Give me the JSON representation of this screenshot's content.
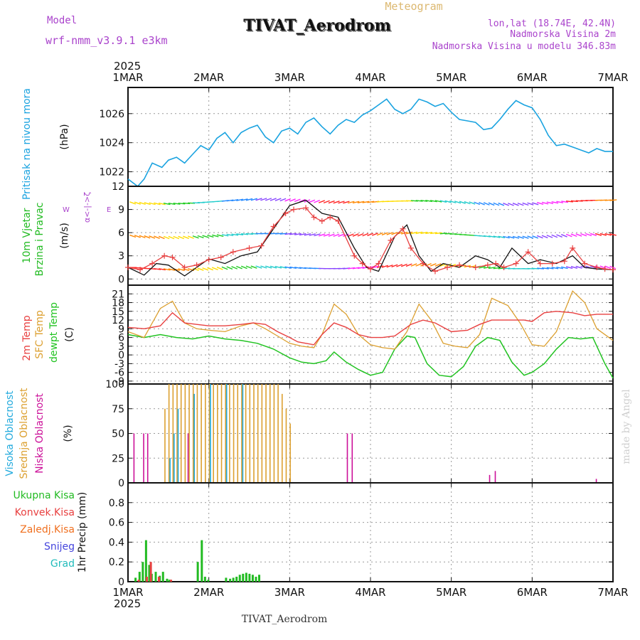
{
  "header": {
    "model_label": "Model",
    "model_name": "wrf-nmm_v3.9.1  e3km",
    "product": "Meteogram",
    "station": "TIVAT_Aerodrom",
    "lonlat": "lon,lat (18.74E, 42.4N)",
    "elevation": "Nadmorska Visina 2m",
    "model_elevation": "Nadmorska Visina u modelu 346.83m",
    "footer_station": "TIVAT_Aerodrom",
    "credit": "made by Angel",
    "year": "2025"
  },
  "colors": {
    "pressure": "#1aa3e0",
    "wind": "#22bb22",
    "temp2m": "#e84040",
    "sfc": "#dca030",
    "dew": "#22c322",
    "high": "#22aadd",
    "mid": "#dca030",
    "low": "#cc1199",
    "conv": "#e84040",
    "frz": "#f07020",
    "snow": "#4444dd",
    "grad": "#22bbbb",
    "purple": "#aa44cc",
    "gust": "#e84040"
  },
  "chart_data": {
    "type": "meteogram",
    "time_axis": {
      "unit": "days since 1 MAR 2025 00UTC",
      "range": [
        0,
        6
      ],
      "tick_labels": [
        "1MAR",
        "2MAR",
        "3MAR",
        "4MAR",
        "5MAR",
        "6MAR",
        "7MAR"
      ]
    },
    "panels": [
      {
        "id": "pressure",
        "type": "line",
        "title": "Pritisak na nivou mora",
        "ylabel": "(hPa)",
        "ylim": [
          1021.0,
          1027.8
        ],
        "yticks": [
          1022,
          1024,
          1026
        ],
        "series": [
          {
            "name": "Pritisak na nivou mora",
            "color_key": "pressure",
            "x": [
              0,
              0.12,
              0.2,
              0.3,
              0.42,
              0.5,
              0.6,
              0.7,
              0.8,
              0.9,
              1.0,
              1.1,
              1.2,
              1.3,
              1.4,
              1.5,
              1.6,
              1.7,
              1.8,
              1.9,
              2.0,
              2.1,
              2.2,
              2.3,
              2.4,
              2.5,
              2.6,
              2.7,
              2.8,
              2.9,
              3.0,
              3.1,
              3.2,
              3.3,
              3.4,
              3.5,
              3.6,
              3.7,
              3.8,
              3.9,
              4.0,
              4.1,
              4.2,
              4.3,
              4.4,
              4.5,
              4.6,
              4.7,
              4.8,
              4.9,
              5.0,
              5.1,
              5.2,
              5.3,
              5.4,
              5.5,
              5.6,
              5.7,
              5.8,
              5.9,
              6.0
            ],
            "values": [
              1021.5,
              1021.0,
              1021.5,
              1022.6,
              1022.3,
              1022.8,
              1023.0,
              1022.6,
              1023.2,
              1023.8,
              1023.5,
              1024.3,
              1024.7,
              1024.0,
              1024.7,
              1025.0,
              1025.2,
              1024.4,
              1024.0,
              1024.8,
              1025.0,
              1024.6,
              1025.4,
              1025.7,
              1025.1,
              1024.6,
              1025.2,
              1025.6,
              1025.4,
              1025.9,
              1026.2,
              1026.6,
              1027.0,
              1026.3,
              1026.0,
              1026.3,
              1027.0,
              1026.8,
              1026.5,
              1026.7,
              1026.1,
              1025.6,
              1025.5,
              1025.4,
              1024.9,
              1025.0,
              1025.6,
              1026.3,
              1026.9,
              1026.6,
              1026.4,
              1025.6,
              1024.5,
              1023.8,
              1023.9,
              1023.7,
              1023.5,
              1023.3,
              1023.6,
              1023.4,
              1023.4
            ]
          }
        ]
      },
      {
        "id": "wind",
        "type": "line",
        "title": "10m Vjetar Brzina i Pravac",
        "ylabel": "(m/s)",
        "compass_label": "α<-|->ζ",
        "compass_w": "W",
        "compass_e": "E",
        "ylim": [
          -0.8,
          12
        ],
        "yticks": [
          0,
          3,
          6,
          9,
          12
        ],
        "barb_levels": [
          1.5,
          5.7,
          10.0
        ],
        "series": [
          {
            "name": "10m wind speed",
            "color_key": "gust",
            "x": [
              0,
              0.15,
              0.3,
              0.45,
              0.55,
              0.7,
              0.85,
              1.0,
              1.15,
              1.3,
              1.5,
              1.65,
              1.8,
              1.95,
              2.05,
              2.2,
              2.3,
              2.4,
              2.5,
              2.6,
              2.8,
              2.9,
              3.0,
              3.1,
              3.25,
              3.4,
              3.5,
              3.65,
              3.8,
              3.95,
              4.1,
              4.3,
              4.45,
              4.55,
              4.65,
              4.8,
              4.95,
              5.1,
              5.25,
              5.4,
              5.5,
              5.65,
              5.8,
              5.9,
              6.0
            ],
            "values": [
              1.5,
              1.2,
              2.0,
              3.0,
              2.8,
              1.5,
              1.8,
              2.5,
              2.8,
              3.5,
              4.0,
              4.3,
              6.8,
              8.5,
              9.0,
              9.2,
              8.0,
              7.5,
              8.0,
              7.5,
              3.0,
              2.0,
              1.3,
              2.0,
              5.0,
              6.5,
              4.0,
              2.0,
              1.0,
              1.5,
              1.8,
              1.5,
              1.8,
              2.0,
              1.5,
              2.0,
              3.5,
              2.0,
              2.0,
              2.3,
              4.0,
              2.0,
              1.5,
              1.3,
              1.2
            ]
          },
          {
            "name": "model speed",
            "color_key": "black",
            "x": [
              0,
              0.2,
              0.35,
              0.5,
              0.7,
              0.85,
              1.0,
              1.2,
              1.4,
              1.6,
              1.8,
              2.0,
              2.2,
              2.4,
              2.6,
              2.8,
              2.95,
              3.1,
              3.3,
              3.45,
              3.6,
              3.75,
              3.9,
              4.1,
              4.3,
              4.45,
              4.6,
              4.75,
              4.95,
              5.1,
              5.3,
              5.5,
              5.65,
              5.8,
              6.0
            ],
            "values": [
              1.5,
              0.5,
              2.0,
              1.8,
              0.4,
              1.5,
              2.6,
              2.0,
              3.0,
              3.5,
              6.5,
              9.5,
              10.2,
              8.5,
              8.0,
              4.0,
              1.5,
              1.0,
              5.5,
              7.0,
              3.0,
              1.0,
              2.0,
              1.5,
              3.0,
              2.5,
              1.5,
              4.0,
              2.0,
              2.5,
              2.0,
              3.0,
              1.5,
              1.3,
              1.2
            ]
          }
        ]
      },
      {
        "id": "temp",
        "type": "line",
        "title": "2m Temp / SFC Temp / dewpt Temp",
        "labels": [
          "2m Temp",
          "SFC Temp",
          "dewpt Temp"
        ],
        "ylabel": "(C)",
        "ylim": [
          -10,
          24
        ],
        "yticks": [
          -9,
          -6,
          -3,
          0,
          3,
          6,
          9,
          12,
          15,
          18,
          21
        ],
        "series": [
          {
            "name": "2m Temp",
            "color_key": "temp2m",
            "x": [
              0,
              0.2,
              0.4,
              0.55,
              0.7,
              0.85,
              1.0,
              1.2,
              1.4,
              1.55,
              1.7,
              1.85,
              2.0,
              2.1,
              2.2,
              2.3,
              2.4,
              2.55,
              2.7,
              2.85,
              3.0,
              3.15,
              3.3,
              3.5,
              3.65,
              3.8,
              4.0,
              4.2,
              4.35,
              4.5,
              4.7,
              4.9,
              5.0,
              5.15,
              5.3,
              5.5,
              5.65,
              5.8,
              5.9,
              6.0
            ],
            "values": [
              9.5,
              9.0,
              10.0,
              14.5,
              11.0,
              10.5,
              10.0,
              10.0,
              10.5,
              11.0,
              10.5,
              8.0,
              6.0,
              4.5,
              4.0,
              3.5,
              7.0,
              11.0,
              9.5,
              7.0,
              6.0,
              6.0,
              6.5,
              10.5,
              12.0,
              11.0,
              8.0,
              8.5,
              10.5,
              12.0,
              12.0,
              12.0,
              11.5,
              14.5,
              15.0,
              14.5,
              13.5,
              14.0,
              14.0,
              14.0
            ]
          },
          {
            "name": "SFC Temp",
            "color_key": "sfc",
            "x": [
              0,
              0.2,
              0.4,
              0.55,
              0.7,
              0.85,
              1.0,
              1.2,
              1.4,
              1.55,
              1.7,
              1.85,
              2.0,
              2.15,
              2.3,
              2.4,
              2.55,
              2.7,
              2.85,
              3.0,
              3.15,
              3.3,
              3.45,
              3.6,
              3.75,
              3.9,
              4.05,
              4.2,
              4.35,
              4.5,
              4.7,
              4.85,
              5.0,
              5.15,
              5.3,
              5.5,
              5.65,
              5.8,
              6.0
            ],
            "values": [
              8.0,
              6.0,
              16.0,
              18.5,
              11.0,
              9.0,
              8.5,
              8.0,
              10.0,
              11.0,
              9.0,
              6.5,
              4.0,
              3.0,
              2.5,
              7.0,
              17.5,
              14.0,
              7.0,
              3.5,
              2.5,
              2.0,
              8.0,
              17.5,
              12.0,
              4.0,
              3.0,
              2.5,
              7.0,
              19.5,
              17.0,
              11.0,
              3.5,
              3.0,
              8.0,
              22.0,
              18.0,
              9.0,
              5.0
            ]
          },
          {
            "name": "dewpt Temp",
            "color_key": "dew",
            "x": [
              0,
              0.2,
              0.4,
              0.6,
              0.8,
              1.0,
              1.2,
              1.4,
              1.6,
              1.8,
              2.0,
              2.15,
              2.3,
              2.45,
              2.55,
              2.7,
              2.85,
              3.0,
              3.15,
              3.3,
              3.45,
              3.55,
              3.7,
              3.85,
              4.0,
              4.15,
              4.3,
              4.45,
              4.6,
              4.75,
              4.9,
              5.0,
              5.15,
              5.3,
              5.45,
              5.6,
              5.75,
              5.9,
              6.0
            ],
            "values": [
              7.0,
              6.0,
              7.0,
              6.0,
              5.5,
              6.5,
              5.5,
              5.0,
              4.0,
              2.0,
              -1.0,
              -2.5,
              -3.0,
              -2.0,
              1.0,
              -2.5,
              -5.0,
              -7.0,
              -6.0,
              2.0,
              6.5,
              6.0,
              -3.0,
              -7.0,
              -7.5,
              -4.0,
              3.0,
              6.0,
              5.0,
              -2.5,
              -7.0,
              -6.0,
              -3.0,
              2.0,
              6.0,
              5.5,
              6.0,
              -3.0,
              -8.0
            ]
          }
        ]
      },
      {
        "id": "cloud",
        "type": "bar",
        "labels": [
          "Visoka Oblacnost",
          "Srednja Oblacnost",
          "Niska Oblacnost"
        ],
        "ylabel": "(%)",
        "ylim": [
          0,
          100
        ],
        "yticks": [
          0,
          25,
          50,
          75,
          100
        ],
        "series": [
          {
            "name": "Niska Oblacnost",
            "color_key": "low",
            "x": [
              0.08,
              0.2,
              0.25,
              0.75,
              2.72,
              2.78,
              4.48,
              4.55,
              5.8
            ],
            "values": [
              50,
              50,
              50,
              50,
              50,
              50,
              8,
              12,
              4
            ]
          },
          {
            "name": "Srednja Oblacnost",
            "color_key": "mid",
            "x": [
              0.45,
              0.5,
              0.55,
              0.6,
              0.65,
              0.7,
              0.75,
              0.8,
              0.85,
              0.9,
              0.95,
              1.0,
              1.05,
              1.1,
              1.15,
              1.2,
              1.25,
              1.3,
              1.35,
              1.4,
              1.45,
              1.5,
              1.55,
              1.6,
              1.65,
              1.7,
              1.75,
              1.8,
              1.85,
              1.9,
              1.95,
              2.0
            ],
            "values": [
              75,
              100,
              100,
              100,
              100,
              100,
              100,
              100,
              100,
              100,
              100,
              100,
              100,
              100,
              100,
              100,
              100,
              100,
              100,
              100,
              100,
              100,
              100,
              100,
              100,
              100,
              100,
              100,
              100,
              90,
              75,
              60
            ]
          },
          {
            "name": "Visoka Oblacnost",
            "color_key": "high",
            "x": [
              0.5,
              0.55,
              0.6,
              0.8,
              1.0,
              1.2,
              1.4
            ],
            "values": [
              25,
              50,
              75,
              90,
              100,
              100,
              100
            ]
          }
        ]
      },
      {
        "id": "precip",
        "type": "bar",
        "labels": [
          "Ukupna Kisa",
          "Konvek.Kisa",
          "Zaledj.Kisa",
          "Snijeg",
          "Grad"
        ],
        "ylabel": "1hr Precip (mm)",
        "ylim": [
          0,
          1.0
        ],
        "yticks": [
          0,
          0.2,
          0.4,
          0.6,
          0.8
        ],
        "series": [
          {
            "name": "Ukupna Kisa",
            "color_key": "wind",
            "x": [
              0.08,
              0.13,
              0.17,
              0.21,
              0.25,
              0.28,
              0.33,
              0.38,
              0.42,
              0.47,
              0.5,
              0.85,
              0.9,
              0.94,
              0.98,
              1.2,
              1.25,
              1.29,
              1.33,
              1.37,
              1.41,
              1.45,
              1.49,
              1.53,
              1.57,
              1.61
            ],
            "values": [
              0.04,
              0.1,
              0.2,
              0.42,
              0.17,
              0.08,
              0.1,
              0.06,
              0.1,
              0.03,
              0.02,
              0.2,
              0.42,
              0.05,
              0.02,
              0.04,
              0.03,
              0.04,
              0.05,
              0.07,
              0.08,
              0.09,
              0.08,
              0.07,
              0.05,
              0.07
            ]
          },
          {
            "name": "Konvek.Kisa",
            "color_key": "conv",
            "x": [
              0.1,
              0.2,
              0.25,
              0.35,
              0.5
            ],
            "values": [
              0.02,
              0.05,
              0.2,
              0.05,
              0.02
            ]
          }
        ]
      }
    ]
  }
}
